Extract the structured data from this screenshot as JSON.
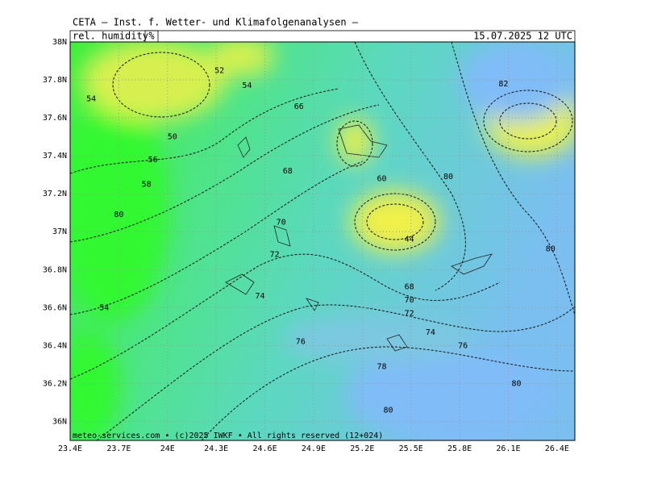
{
  "header": {
    "title": "CETA — Inst. f. Wetter- und Klimafolgenanalysen —",
    "field": "rel. humidity",
    "unit": "%",
    "valid_time": "15.07.2025 12 UTC",
    "footer": "meteo-services.com • (c)2025 IWKF • All rights reserved (12+024)"
  },
  "map": {
    "xlim": [
      23.4,
      26.51
    ],
    "ylim": [
      35.9,
      38
    ],
    "xticks": [
      {
        "value": 23.4,
        "label": "23.4E"
      },
      {
        "value": 23.7,
        "label": "23.7E"
      },
      {
        "value": 24,
        "label": "24E"
      },
      {
        "value": 24.3,
        "label": "24.3E"
      },
      {
        "value": 24.6,
        "label": "24.6E"
      },
      {
        "value": 24.9,
        "label": "24.9E"
      },
      {
        "value": 25.2,
        "label": "25.2E"
      },
      {
        "value": 25.5,
        "label": "25.5E"
      },
      {
        "value": 25.8,
        "label": "25.8E"
      },
      {
        "value": 26.1,
        "label": "26.1E"
      },
      {
        "value": 26.4,
        "label": "26.4E"
      }
    ],
    "yticks": [
      {
        "value": 38,
        "label": "38N"
      },
      {
        "value": 37.8,
        "label": "37.8N"
      },
      {
        "value": 37.6,
        "label": "37.6N"
      },
      {
        "value": 37.4,
        "label": "37.4N"
      },
      {
        "value": 37.2,
        "label": "37.2N"
      },
      {
        "value": 37,
        "label": "37N"
      },
      {
        "value": 36.8,
        "label": "36.8N"
      },
      {
        "value": 36.6,
        "label": "36.6N"
      },
      {
        "value": 36.4,
        "label": "36.4N"
      },
      {
        "value": 36.2,
        "label": "36.2N"
      },
      {
        "value": 36,
        "label": "36N"
      }
    ],
    "grid": true,
    "contour_labels": [
      {
        "value": 80,
        "lon": 23.7,
        "lat": 37.09
      },
      {
        "value": 58,
        "lon": 23.87,
        "lat": 37.25
      },
      {
        "value": 56,
        "lon": 23.91,
        "lat": 37.38
      },
      {
        "value": 50,
        "lon": 24.03,
        "lat": 37.5
      },
      {
        "value": 54,
        "lon": 23.53,
        "lat": 37.7
      },
      {
        "value": 52,
        "lon": 24.32,
        "lat": 37.85
      },
      {
        "value": 54,
        "lon": 24.49,
        "lat": 37.77
      },
      {
        "value": 66,
        "lon": 24.81,
        "lat": 37.66
      },
      {
        "value": 68,
        "lon": 24.74,
        "lat": 37.32
      },
      {
        "value": 70,
        "lon": 24.7,
        "lat": 37.05
      },
      {
        "value": 72,
        "lon": 24.66,
        "lat": 36.88
      },
      {
        "value": 74,
        "lon": 24.57,
        "lat": 36.66
      },
      {
        "value": 76,
        "lon": 24.82,
        "lat": 36.42
      },
      {
        "value": 78,
        "lon": 25.32,
        "lat": 36.29
      },
      {
        "value": 80,
        "lon": 25.36,
        "lat": 36.06
      },
      {
        "value": 54,
        "lon": 23.61,
        "lat": 36.6
      },
      {
        "value": 80,
        "lon": 25.73,
        "lat": 37.29
      },
      {
        "value": 82,
        "lon": 26.07,
        "lat": 37.78
      },
      {
        "value": 80,
        "lon": 26.36,
        "lat": 36.91
      },
      {
        "value": 80,
        "lon": 26.15,
        "lat": 36.2
      },
      {
        "value": 76,
        "lon": 25.82,
        "lat": 36.4
      },
      {
        "value": 74,
        "lon": 25.62,
        "lat": 36.47
      },
      {
        "value": 72,
        "lon": 25.49,
        "lat": 36.57
      },
      {
        "value": 70,
        "lon": 25.49,
        "lat": 36.64
      },
      {
        "value": 68,
        "lon": 25.49,
        "lat": 36.71
      },
      {
        "value": 60,
        "lon": 25.32,
        "lat": 37.28
      },
      {
        "value": 44,
        "lon": 25.49,
        "lat": 36.96
      }
    ]
  }
}
